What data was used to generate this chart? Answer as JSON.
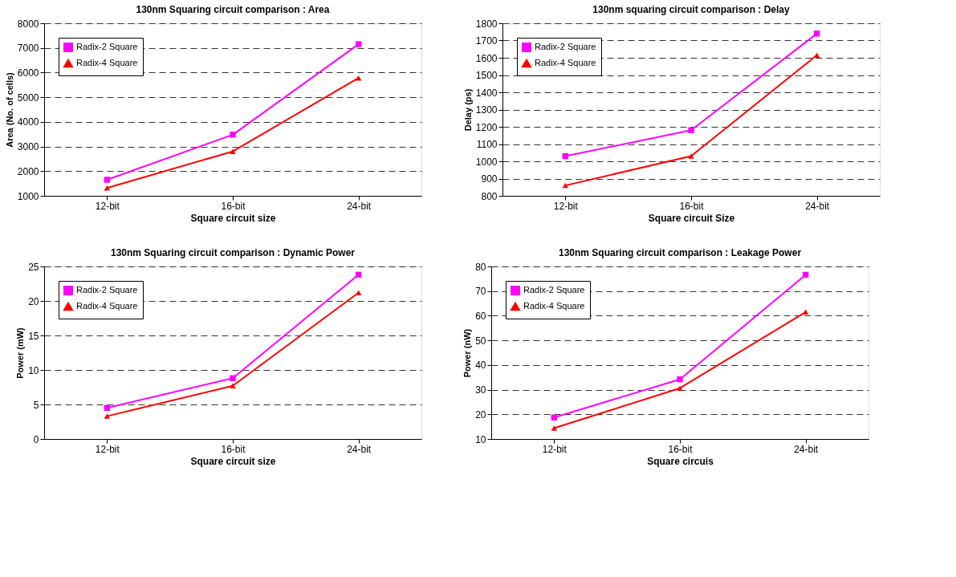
{
  "chart_data": [
    {
      "type": "line",
      "title": "130nm Squaring circuit comparison : Area",
      "xlabel": "Square circuit size",
      "ylabel": "Area (No. of cells)",
      "categories": [
        "12-bit",
        "16-bit",
        "24-bit"
      ],
      "ylim": [
        1000,
        8000
      ],
      "yticks": [
        1000,
        2000,
        3000,
        4000,
        5000,
        6000,
        7000,
        8000
      ],
      "grid": "y",
      "legend": "top left",
      "series": [
        {
          "name": "Radix-2 Square",
          "color": "#ff00ff",
          "marker": "square",
          "values": [
            1650,
            3480,
            7150
          ]
        },
        {
          "name": "Radix-4 Square",
          "color": "#ff0000",
          "marker": "triangle",
          "values": [
            1320,
            2800,
            5780
          ]
        }
      ]
    },
    {
      "type": "line",
      "title": "130nm squaring circuit comparison : Delay",
      "xlabel": "Square circuit Size",
      "ylabel": "Delay (ps)",
      "categories": [
        "12-bit",
        "16-bit",
        "24-bit"
      ],
      "ylim": [
        800,
        1800
      ],
      "yticks": [
        800,
        900,
        1000,
        1100,
        1200,
        1300,
        1400,
        1500,
        1600,
        1700,
        1800
      ],
      "grid": "y",
      "legend": "top left",
      "series": [
        {
          "name": "Radix-2 Square",
          "color": "#ff00ff",
          "marker": "square",
          "values": [
            1030,
            1180,
            1740
          ]
        },
        {
          "name": "Radix-4 Square",
          "color": "#ff0000",
          "marker": "triangle",
          "values": [
            860,
            1030,
            1615
          ]
        }
      ]
    },
    {
      "type": "line",
      "title": "130nm Squaring circuit comparison : Dynamic Power",
      "xlabel": "Square circuit size",
      "ylabel": "Power (mW)",
      "categories": [
        "12-bit",
        "16-bit",
        "24-bit"
      ],
      "ylim": [
        0,
        25
      ],
      "yticks": [
        0,
        5,
        10,
        15,
        20,
        25
      ],
      "grid": "y",
      "legend": "top left",
      "series": [
        {
          "name": "Radix-2 Square",
          "color": "#ff00ff",
          "marker": "square",
          "values": [
            4.5,
            8.8,
            23.8
          ]
        },
        {
          "name": "Radix-4 Square",
          "color": "#ff0000",
          "marker": "triangle",
          "values": [
            3.3,
            7.7,
            21.2
          ]
        }
      ]
    },
    {
      "type": "line",
      "title": "130nm Squaring circuit comparison : Leakage Power",
      "xlabel": "Square circuis",
      "ylabel": "Power (nW)",
      "categories": [
        "12-bit",
        "16-bit",
        "24-bit"
      ],
      "ylim": [
        10,
        80
      ],
      "yticks": [
        10,
        20,
        30,
        40,
        50,
        60,
        70,
        80
      ],
      "grid": "y",
      "legend": "top left",
      "series": [
        {
          "name": "Radix-2 Square",
          "color": "#ff00ff",
          "marker": "square",
          "values": [
            18.7,
            34.2,
            76.6
          ]
        },
        {
          "name": "Radix-4 Square",
          "color": "#ff0000",
          "marker": "triangle",
          "values": [
            14.4,
            30.6,
            61.5
          ]
        }
      ]
    }
  ]
}
